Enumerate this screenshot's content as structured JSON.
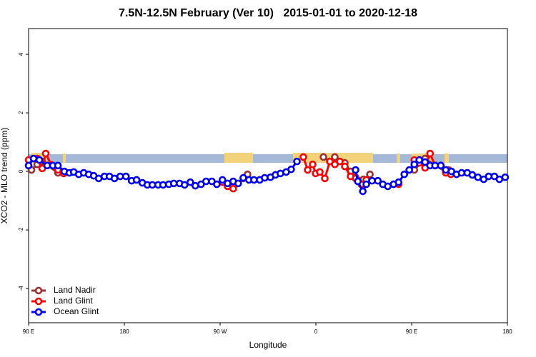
{
  "chart_data": {
    "type": "line",
    "title": "7.5N-12.5N February (Ver 10)   2015-01-01 to 2020-12-18",
    "x_label": "Longitude",
    "y_label": "XCO2 - MLO trend (ppm)",
    "xlim": [
      90,
      540
    ],
    "ylim": [
      -5.17,
      4.88
    ],
    "xticks": [
      {
        "value": 90,
        "label": "90 E"
      },
      {
        "value": 180,
        "label": "180"
      },
      {
        "value": 270,
        "label": "90 W"
      },
      {
        "value": 360,
        "label": "0"
      },
      {
        "value": 450,
        "label": "90 E"
      },
      {
        "value": 540,
        "label": "180"
      }
    ],
    "yticks": [
      -4,
      -2,
      0,
      2,
      4
    ],
    "legend": "bottom-left",
    "series": [
      {
        "name": "Land Nadir",
        "color": "#993333",
        "x": [
          92.7,
          98.1,
          102.8,
          117.6,
          200,
          282.3,
          291.8,
          295.8,
          330,
          367.1,
          373.1,
          377.8,
          382.5,
          387.2,
          392.6,
          397.3,
          404.7,
          410.8,
          440,
          452.5,
          462.6,
          472,
          482.1,
          484.8
        ],
        "values": [
          0.05,
          0.24,
          0.34,
          -0.05,
          null,
          -0.51,
          -0.24,
          -0.1,
          null,
          0.49,
          0.34,
          0.49,
          0.34,
          0.29,
          0,
          -0.2,
          -0.27,
          -0.1,
          null,
          0.05,
          0.44,
          0.2,
          0,
          0.05
        ]
      },
      {
        "name": "Land Glint",
        "color": "#ff0000",
        "x": [
          90,
          98.1,
          102.8,
          106.1,
          111.5,
          117.6,
          123,
          200,
          272.2,
          277,
          282.3,
          320,
          348.2,
          352.3,
          357,
          359.7,
          363.7,
          368.4,
          373.1,
          377.8,
          382.5,
          387.2,
          392.6,
          397.3,
          402.7,
          407.4,
          420,
          437.7,
          445,
          452.5,
          457.2,
          462.6,
          467.3,
          472,
          477.4,
          482.1,
          486.8
        ],
        "values": [
          0.39,
          0.44,
          0.1,
          0.61,
          0.22,
          0.05,
          -0.07,
          null,
          -0.37,
          -0.51,
          -0.59,
          null,
          0.49,
          0.05,
          0.24,
          -0.07,
          -0.02,
          -0.24,
          0.34,
          0.24,
          0.34,
          0.17,
          -0.17,
          -0.24,
          -0.44,
          -0.29,
          null,
          -0.44,
          null,
          0.39,
          0.29,
          0.12,
          0.61,
          0.2,
          0.2,
          -0.05,
          -0.1
        ]
      },
      {
        "name": "Ocean Glint",
        "color": "#0000ee",
        "x": [
          90,
          94.7,
          100.1,
          107.5,
          112.8,
          117.6,
          123.6,
          128.3,
          132.4,
          137.1,
          141.8,
          146.5,
          151.2,
          155.9,
          161.3,
          166,
          170.7,
          176.1,
          181.5,
          186.8,
          191.5,
          196.9,
          201.6,
          206.3,
          211.7,
          216.4,
          221.8,
          226.5,
          231.9,
          236.6,
          242,
          246.7,
          252.1,
          256.8,
          262.2,
          266.9,
          272.2,
          277,
          282.3,
          287,
          291.8,
          297.1,
          301.8,
          307.2,
          311.9,
          317.3,
          322,
          326.7,
          332.1,
          336.8,
          342.2,
          370,
          397.3,
          399.4,
          404.1,
          407.4,
          412.8,
          418.2,
          422.9,
          427.6,
          433,
          437.7,
          443.1,
          447.8,
          452.5,
          457.2,
          462.6,
          467.3,
          472,
          477.4,
          482.1,
          487.4,
          492.2,
          496.9,
          502.3,
          507,
          512.3,
          517.7,
          522.4,
          527.8,
          532.5,
          537.9
        ],
        "values": [
          0.2,
          0.44,
          0.39,
          0.2,
          0.2,
          0.2,
          0,
          -0.05,
          -0.02,
          -0.1,
          -0.05,
          -0.1,
          -0.15,
          -0.24,
          -0.17,
          -0.17,
          -0.24,
          -0.17,
          -0.17,
          -0.32,
          -0.29,
          -0.39,
          -0.46,
          -0.46,
          -0.46,
          -0.46,
          -0.44,
          -0.41,
          -0.41,
          -0.46,
          -0.37,
          -0.49,
          -0.44,
          -0.34,
          -0.34,
          -0.44,
          -0.29,
          -0.41,
          -0.34,
          -0.41,
          -0.22,
          -0.29,
          -0.29,
          -0.29,
          -0.22,
          -0.2,
          -0.12,
          -0.07,
          -0.02,
          0.07,
          0.34,
          null,
          0.05,
          -0.34,
          -0.68,
          -0.44,
          -0.32,
          -0.32,
          -0.44,
          -0.51,
          -0.44,
          -0.37,
          -0.1,
          0.05,
          0.24,
          0.39,
          0.32,
          0.2,
          0.2,
          0.2,
          0.05,
          0,
          -0.1,
          -0.05,
          -0.05,
          -0.12,
          -0.2,
          -0.27,
          -0.17,
          -0.17,
          -0.27,
          -0.2
        ]
      }
    ]
  }
}
